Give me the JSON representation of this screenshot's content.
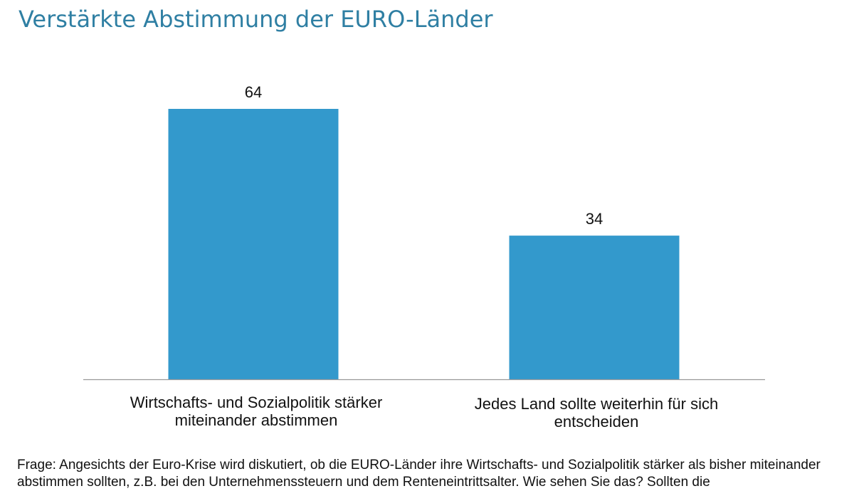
{
  "chart_data": {
    "type": "bar",
    "title": "Verstärkte Abstimmung der EURO-Länder",
    "categories": [
      [
        "Wirtschafts- und Sozialpolitik stärker",
        "miteinander abstimmen"
      ],
      [
        "Jedes Land sollte weiterhin für sich",
        "entscheiden"
      ]
    ],
    "values": [
      64,
      34
    ],
    "data_labels": [
      "64",
      "34"
    ],
    "ylim": [
      0,
      64
    ],
    "grid": false,
    "legend": "none",
    "bar_color": "#3399cc",
    "axis_color": "#999999"
  },
  "footnote": "Frage: Angesichts der Euro-Krise wird diskutiert, ob die EURO-Länder ihre Wirtschafts- und Sozialpolitik stärker als bisher miteinander abstimmen sollten, z.B. bei den Unternehmenssteuern und dem Renteneintrittsalter. Wie sehen Sie das? Sollten die"
}
